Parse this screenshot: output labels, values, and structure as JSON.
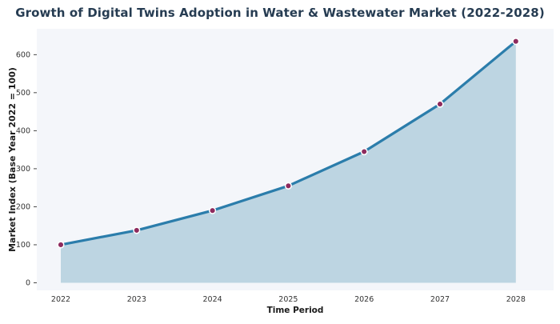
{
  "chart_data": {
    "type": "area",
    "title": "Growth of Digital Twins Adoption in Water & Wastewater Market (2022-2028)",
    "xlabel": "Time Period",
    "ylabel": "Market Index (Base Year 2022 = 100)",
    "categories": [
      "2022",
      "2023",
      "2024",
      "2025",
      "2026",
      "2027",
      "2028"
    ],
    "values": [
      100,
      138,
      190,
      255,
      345,
      470,
      635
    ],
    "yticks": [
      0,
      100,
      200,
      300,
      400,
      500,
      600
    ],
    "ylim": [
      -20,
      668
    ],
    "grid": false,
    "legend": "none",
    "colors": {
      "line": "#2b7dab",
      "fill": "#bdd5e2",
      "marker": "#8e2b5e",
      "marker_edge": "#ffffff",
      "plot_background": "#f4f6fa",
      "page_background": "#ffffff",
      "title_text": "#263c52",
      "axis_text": "#333333"
    }
  }
}
